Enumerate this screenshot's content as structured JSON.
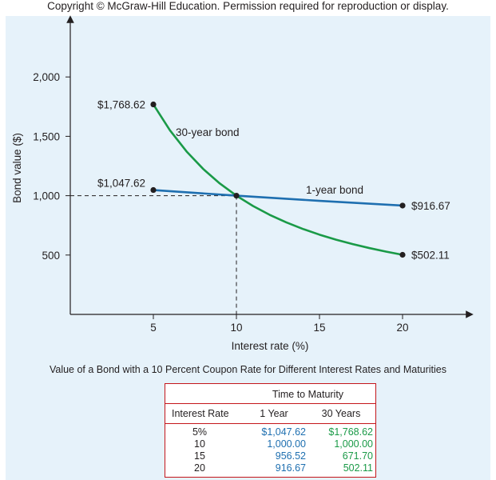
{
  "copyright": "Copyright © McGraw-Hill Education. Permission required for reproduction or display.",
  "chart_data": {
    "type": "line",
    "xlabel": "Interest rate (%)",
    "ylabel": "Bond value ($)",
    "xlim": [
      0,
      23
    ],
    "ylim": [
      0,
      2350
    ],
    "xticks": [
      5,
      10,
      15,
      20
    ],
    "yticks": [
      500,
      1000,
      1500,
      2000
    ],
    "xtick_labels": [
      "5",
      "10",
      "15",
      "20"
    ],
    "ytick_labels": [
      "500",
      "1,000",
      "1,500",
      "2,000"
    ],
    "series": [
      {
        "name": "30-year bond",
        "color": "#1a9a47",
        "x": [
          5,
          6,
          7,
          8,
          9,
          10,
          11,
          12,
          13,
          14,
          15,
          16,
          17,
          18,
          19,
          20
        ],
        "y": [
          1768.62,
          1550.54,
          1372.27,
          1225.16,
          1102.74,
          1000.0,
          913.06,
          838.9,
          775.13,
          719.89,
          671.7,
          629.4,
          592.03,
          558.83,
          529.17,
          502.11
        ]
      },
      {
        "name": "1-year bond",
        "color": "#1e6fb0",
        "x": [
          5,
          10,
          15,
          20
        ],
        "y": [
          1047.62,
          1000.0,
          956.52,
          916.67
        ]
      }
    ],
    "annotations": {
      "green_start": "$1,768.62",
      "blue_start": "$1,047.62",
      "blue_end": "$916.67",
      "green_end": "$502.11",
      "green_name": "30-year bond",
      "blue_name": "1-year bond"
    },
    "reference_point": {
      "x": 10,
      "y": 1000
    },
    "grid": false
  },
  "caption": "Value of a Bond with a 10 Percent Coupon Rate for Different Interest Rates and Maturities",
  "table": {
    "group_header": "Time to Maturity",
    "headers": [
      "Interest Rate",
      "1 Year",
      "30 Years"
    ],
    "rows": [
      [
        "5%",
        "$1,047.62",
        "$1,768.62"
      ],
      [
        "10",
        "1,000.00",
        "1,000.00"
      ],
      [
        "15",
        "956.52",
        "671.70"
      ],
      [
        "20",
        "916.67",
        "502.11"
      ]
    ]
  }
}
